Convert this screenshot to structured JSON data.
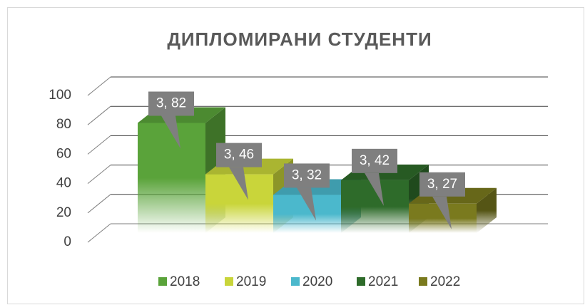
{
  "chart_data": {
    "type": "bar3d",
    "title": "ДИПЛОМИРАНИ СТУДЕНТИ",
    "series": [
      {
        "name": "2018",
        "color": "#5aa33a",
        "values": [
          75
        ],
        "annotation": "3, 82"
      },
      {
        "name": "2019",
        "color": "#c9d53a",
        "values": [
          40
        ],
        "annotation": "3, 46"
      },
      {
        "name": "2020",
        "color": "#4bb8cc",
        "values": [
          26
        ],
        "annotation": "3, 32"
      },
      {
        "name": "2021",
        "color": "#2e6b2a",
        "values": [
          36
        ],
        "annotation": "3, 42"
      },
      {
        "name": "2022",
        "color": "#7a7a1e",
        "values": [
          20
        ],
        "annotation": "3, 27"
      }
    ],
    "ylim": [
      0,
      100
    ],
    "yticks": [
      0,
      20,
      40,
      60,
      80,
      100
    ],
    "grid": true,
    "legend": "bottom"
  }
}
